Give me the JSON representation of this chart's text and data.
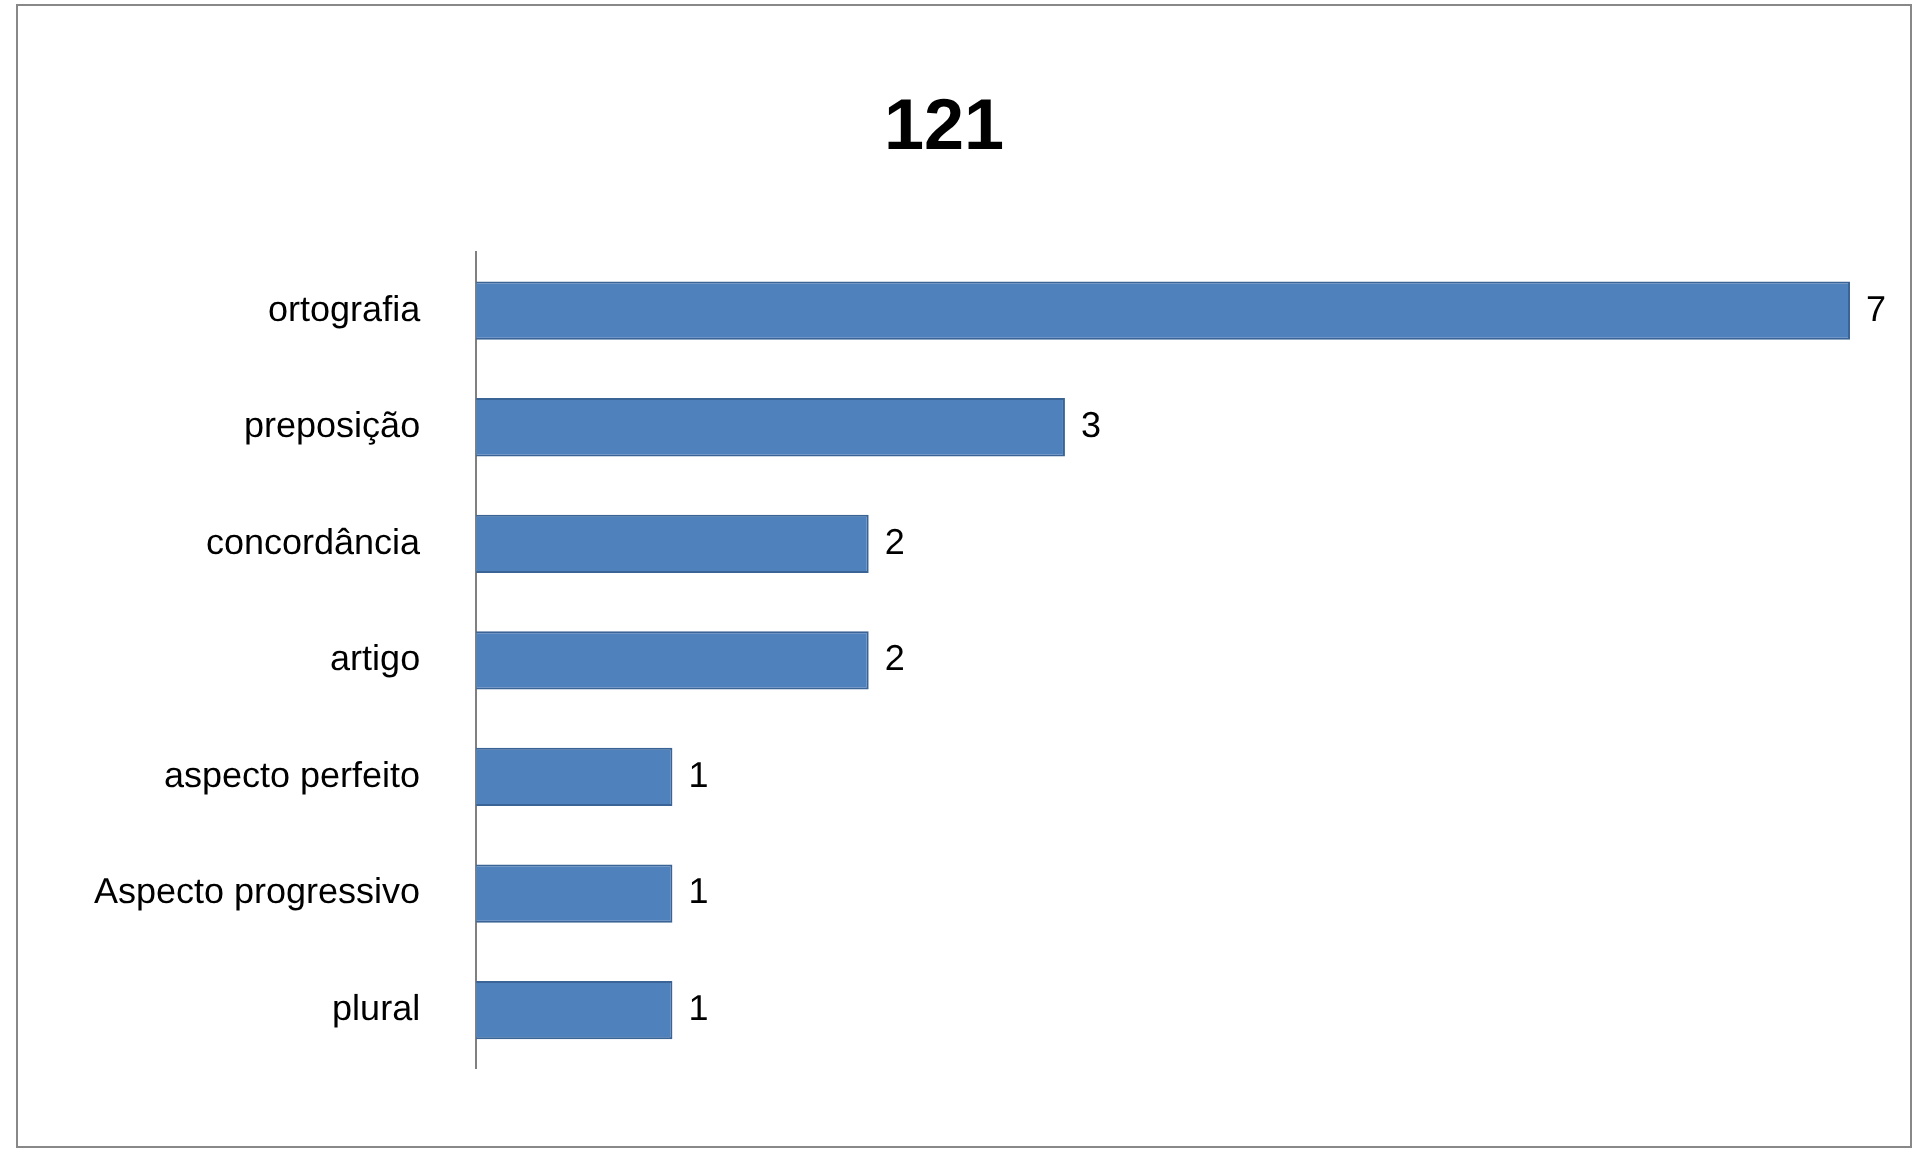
{
  "chart_data": {
    "type": "bar",
    "orientation": "horizontal",
    "title": "121",
    "categories": [
      "ortografia",
      "preposição",
      "concordância",
      "artigo",
      "aspecto perfeito",
      "Aspecto progressivo",
      "plural"
    ],
    "values": [
      7,
      3,
      2,
      2,
      1,
      1,
      1
    ],
    "color": "#4f81bd",
    "xlim": [
      0,
      7
    ],
    "tick_labels": "y",
    "data_labels": true,
    "grid": false,
    "legend": false
  }
}
